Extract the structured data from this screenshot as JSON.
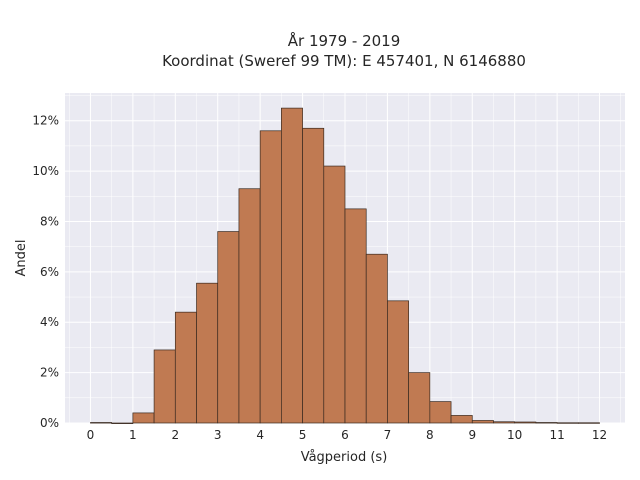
{
  "chart_data": {
    "type": "bar",
    "title": "År 1979 - 2019",
    "subtitle": "Koordinat (Sweref 99 TM): E 457401, N 6146880",
    "xlabel": "Vågperiod (s)",
    "ylabel": "Andel",
    "bin_width": 0.5,
    "x": [
      0,
      0.5,
      1,
      1.5,
      2,
      2.5,
      3,
      3.5,
      4,
      4.5,
      5,
      5.5,
      6,
      6.5,
      7,
      7.5,
      8,
      8.5,
      9,
      9.5,
      10,
      10.5,
      11,
      11.5
    ],
    "values": [
      0.02,
      0.0,
      0.4,
      2.9,
      4.4,
      5.55,
      7.6,
      9.3,
      11.6,
      12.5,
      11.7,
      10.2,
      8.5,
      6.7,
      4.85,
      2.0,
      0.85,
      0.3,
      0.1,
      0.05,
      0.04,
      0.02,
      0.01,
      0.01
    ],
    "xticks": [
      0,
      1,
      2,
      3,
      4,
      5,
      6,
      7,
      8,
      9,
      10,
      11,
      12
    ],
    "yticks": [
      0,
      2,
      4,
      6,
      8,
      10,
      12
    ],
    "ytick_suffix": "%",
    "xlim": [
      -0.6,
      12.6
    ],
    "ylim": [
      0,
      13.1
    ],
    "grid": true,
    "colors": {
      "bar_fill": "#c07a52",
      "bar_edge": "#3a2a20",
      "plot_bg": "#eaeaf2",
      "grid": "#ffffff"
    }
  }
}
